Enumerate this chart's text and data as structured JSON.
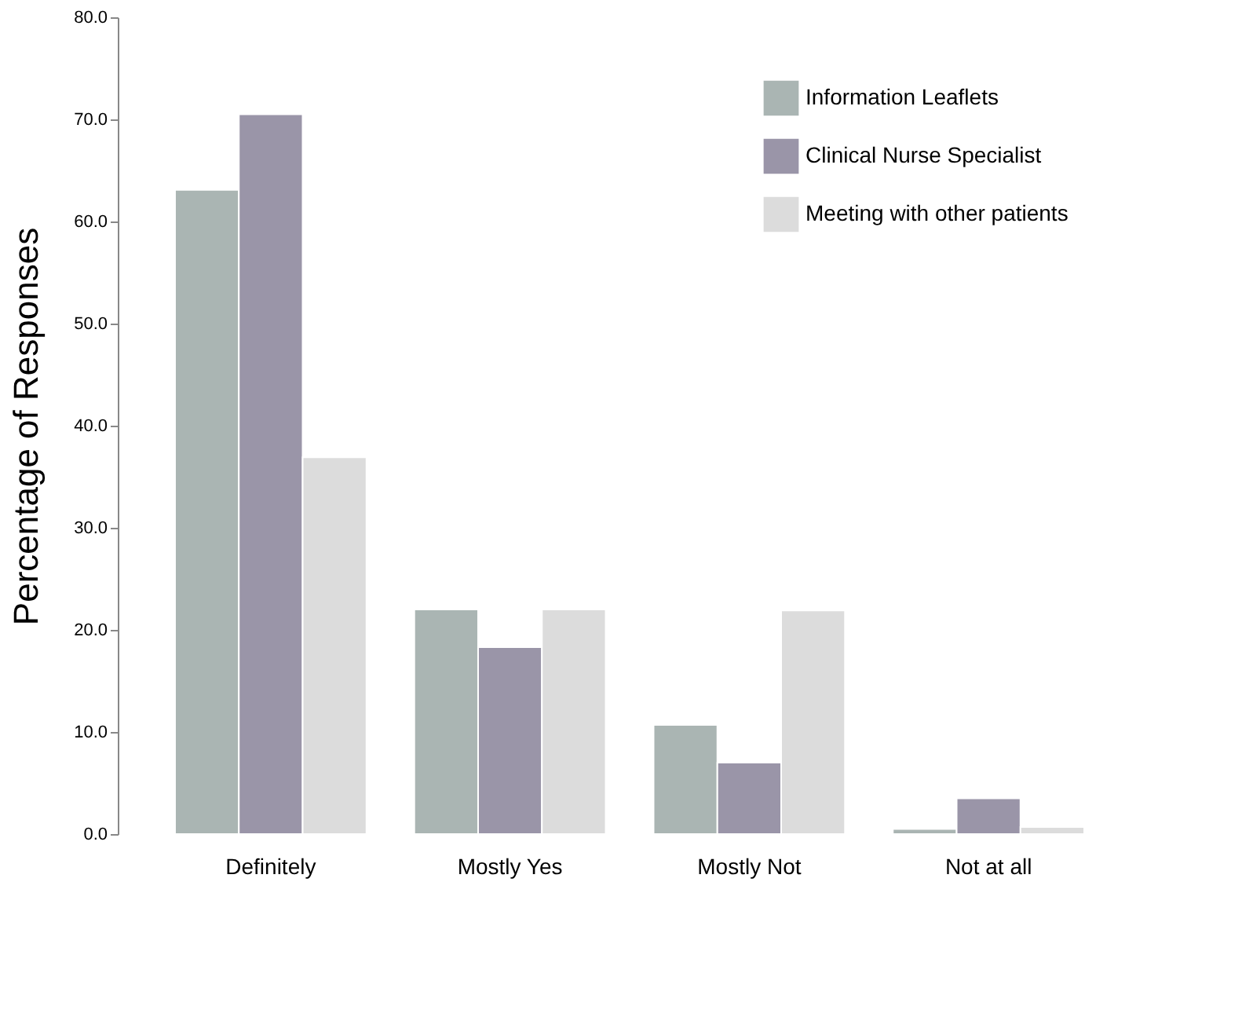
{
  "chart_data": {
    "type": "bar",
    "ylabel": "Percentage of Responses",
    "categories": [
      "Definitely",
      "Mostly Yes",
      "Mostly  Not",
      "Not at all"
    ],
    "series": [
      {
        "name": "Information Leaflets",
        "color": "#aab5b3",
        "values": [
          63.1,
          22.0,
          10.7,
          0.5
        ]
      },
      {
        "name": "Clinical Nurse Specialist",
        "color": "#9a95a8",
        "values": [
          70.5,
          18.3,
          7.0,
          3.5
        ]
      },
      {
        "name": "Meeting with other patients",
        "color": "#dcdcdc",
        "values": [
          36.9,
          22.0,
          21.9,
          0.7
        ]
      }
    ],
    "ylim": [
      0,
      80
    ],
    "yticks": [
      {
        "value": 0,
        "label": "0.0"
      },
      {
        "value": 10,
        "label": "10.0"
      },
      {
        "value": 20,
        "label": "20.0"
      },
      {
        "value": 30,
        "label": "30.0"
      },
      {
        "value": 40,
        "label": "40.0"
      },
      {
        "value": 50,
        "label": "50.0"
      },
      {
        "value": 60,
        "label": "60.0"
      },
      {
        "value": 70,
        "label": "70.0"
      },
      {
        "value": 80,
        "label": "80.0"
      }
    ],
    "grid": false,
    "legend": "top right"
  }
}
